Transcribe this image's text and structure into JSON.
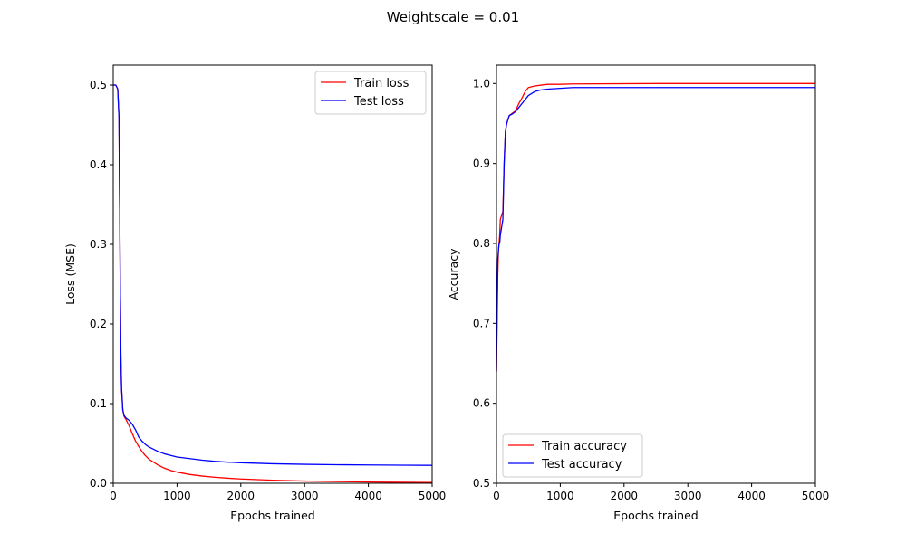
{
  "figure": {
    "suptitle": "Weightscale = 0.01"
  },
  "chart_data": [
    {
      "type": "line",
      "title": "",
      "xlabel": "Epochs trained",
      "ylabel": "Loss (MSE)",
      "xlim": [
        0,
        5000
      ],
      "ylim": [
        0,
        0.525
      ],
      "xticks": [
        0,
        1000,
        2000,
        3000,
        4000,
        5000
      ],
      "xtick_labels": [
        "0",
        "1000",
        "2000",
        "3000",
        "4000",
        "5000"
      ],
      "yticks": [
        0.0,
        0.1,
        0.2,
        0.3,
        0.4,
        0.5
      ],
      "ytick_labels": [
        "0.0",
        "0.1",
        "0.2",
        "0.3",
        "0.4",
        "0.5"
      ],
      "grid": false,
      "legend_position": "upper right",
      "series": [
        {
          "name": "Train loss",
          "color": "#ff0000",
          "x": [
            0,
            40,
            70,
            90,
            100,
            110,
            120,
            130,
            150,
            170,
            200,
            250,
            300,
            350,
            400,
            450,
            500,
            550,
            600,
            700,
            800,
            900,
            1000,
            1200,
            1400,
            1600,
            1800,
            2000,
            2500,
            3000,
            3500,
            4000,
            4500,
            5000
          ],
          "y": [
            0.5,
            0.5,
            0.495,
            0.46,
            0.36,
            0.25,
            0.16,
            0.12,
            0.092,
            0.084,
            0.08,
            0.072,
            0.062,
            0.053,
            0.046,
            0.04,
            0.035,
            0.031,
            0.028,
            0.023,
            0.019,
            0.016,
            0.014,
            0.011,
            0.009,
            0.0075,
            0.0063,
            0.0054,
            0.0038,
            0.0028,
            0.0021,
            0.0016,
            0.0012,
            0.001
          ]
        },
        {
          "name": "Test loss",
          "color": "#0000ff",
          "x": [
            0,
            40,
            70,
            90,
            100,
            110,
            120,
            130,
            150,
            170,
            200,
            250,
            300,
            350,
            400,
            450,
            500,
            550,
            600,
            700,
            800,
            900,
            1000,
            1200,
            1400,
            1600,
            1800,
            2000,
            2500,
            3000,
            3500,
            4000,
            4500,
            5000
          ],
          "y": [
            0.5,
            0.5,
            0.495,
            0.46,
            0.36,
            0.25,
            0.16,
            0.12,
            0.092,
            0.085,
            0.082,
            0.079,
            0.074,
            0.067,
            0.058,
            0.053,
            0.049,
            0.046,
            0.044,
            0.04,
            0.037,
            0.035,
            0.033,
            0.031,
            0.029,
            0.0275,
            0.0265,
            0.0258,
            0.0245,
            0.0238,
            0.0233,
            0.023,
            0.0227,
            0.0225
          ]
        }
      ]
    },
    {
      "type": "line",
      "title": "",
      "xlabel": "Epochs trained",
      "ylabel": "Accuracy",
      "xlim": [
        0,
        5000
      ],
      "ylim": [
        0.5,
        1.023
      ],
      "xticks": [
        0,
        1000,
        2000,
        3000,
        4000,
        5000
      ],
      "xtick_labels": [
        "0",
        "1000",
        "2000",
        "3000",
        "4000",
        "5000"
      ],
      "yticks": [
        0.5,
        0.6,
        0.7,
        0.8,
        0.9,
        1.0
      ],
      "ytick_labels": [
        "0.5",
        "0.6",
        "0.7",
        "0.8",
        "0.9",
        "1.0"
      ],
      "grid": false,
      "legend_position": "lower left",
      "series": [
        {
          "name": "Train accuracy",
          "color": "#ff0000",
          "x": [
            0,
            10,
            20,
            30,
            40,
            50,
            60,
            80,
            100,
            120,
            140,
            160,
            180,
            200,
            250,
            300,
            350,
            400,
            450,
            500,
            600,
            700,
            800,
            1000,
            1200,
            2500,
            5000
          ],
          "y": [
            0.64,
            0.7,
            0.76,
            0.79,
            0.8,
            0.81,
            0.83,
            0.835,
            0.84,
            0.9,
            0.94,
            0.95,
            0.955,
            0.96,
            0.963,
            0.966,
            0.975,
            0.982,
            0.99,
            0.995,
            0.997,
            0.998,
            0.999,
            0.999,
            0.9995,
            1.0,
            1.0
          ]
        },
        {
          "name": "Test accuracy",
          "color": "#0000ff",
          "x": [
            0,
            10,
            20,
            30,
            40,
            50,
            60,
            80,
            100,
            120,
            140,
            160,
            180,
            200,
            250,
            300,
            350,
            400,
            450,
            500,
            600,
            700,
            800,
            1000,
            1200,
            1500,
            2500,
            5000
          ],
          "y": [
            0.64,
            0.72,
            0.78,
            0.79,
            0.8,
            0.8,
            0.81,
            0.82,
            0.83,
            0.9,
            0.94,
            0.95,
            0.955,
            0.96,
            0.962,
            0.965,
            0.97,
            0.975,
            0.98,
            0.985,
            0.99,
            0.992,
            0.993,
            0.994,
            0.995,
            0.995,
            0.995,
            0.995
          ]
        }
      ]
    }
  ]
}
